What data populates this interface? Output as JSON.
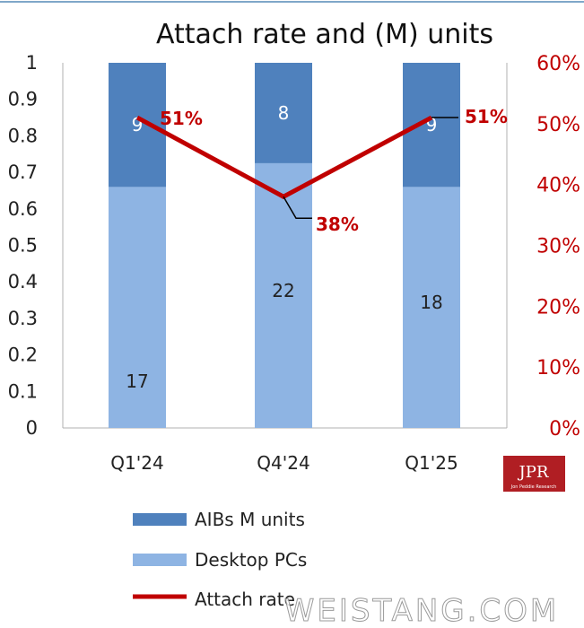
{
  "chart_data": {
    "type": "bar",
    "title": "Attach rate and (M) units",
    "categories": [
      "Q1'24",
      "Q4'24",
      "Q1'25"
    ],
    "series": [
      {
        "name": "Desktop PCs",
        "kind": "stacked-bar",
        "values": [
          17,
          22,
          18
        ],
        "color": "#8eb4e3"
      },
      {
        "name": "AIBs M units",
        "kind": "stacked-bar",
        "values": [
          9,
          8,
          9
        ],
        "color": "#4f81bd"
      },
      {
        "name": "Attach rate",
        "kind": "line",
        "axis": "right",
        "values": [
          0.51,
          0.38,
          0.51
        ],
        "color": "#c00000"
      }
    ],
    "bar_fractions": {
      "desktop": [
        0.66,
        0.725,
        0.66
      ],
      "aib": [
        0.34,
        0.275,
        0.34
      ]
    },
    "ylim_left": [
      0,
      1
    ],
    "ylim_right": [
      0,
      0.6
    ],
    "left_ticks": [
      "0",
      "0.1",
      "0.2",
      "0.3",
      "0.4",
      "0.5",
      "0.6",
      "0.7",
      "0.8",
      "0.9",
      "1"
    ],
    "right_ticks": [
      "0%",
      "10%",
      "20%",
      "30%",
      "40%",
      "50%",
      "60%"
    ],
    "rate_labels": [
      "51%",
      "38%",
      "51%"
    ],
    "grid": false,
    "legend_position": "bottom-left"
  },
  "logo": {
    "text": "JPR",
    "subtitle": "Jon Peddie Research"
  },
  "watermark": "WEISTANG.COM"
}
